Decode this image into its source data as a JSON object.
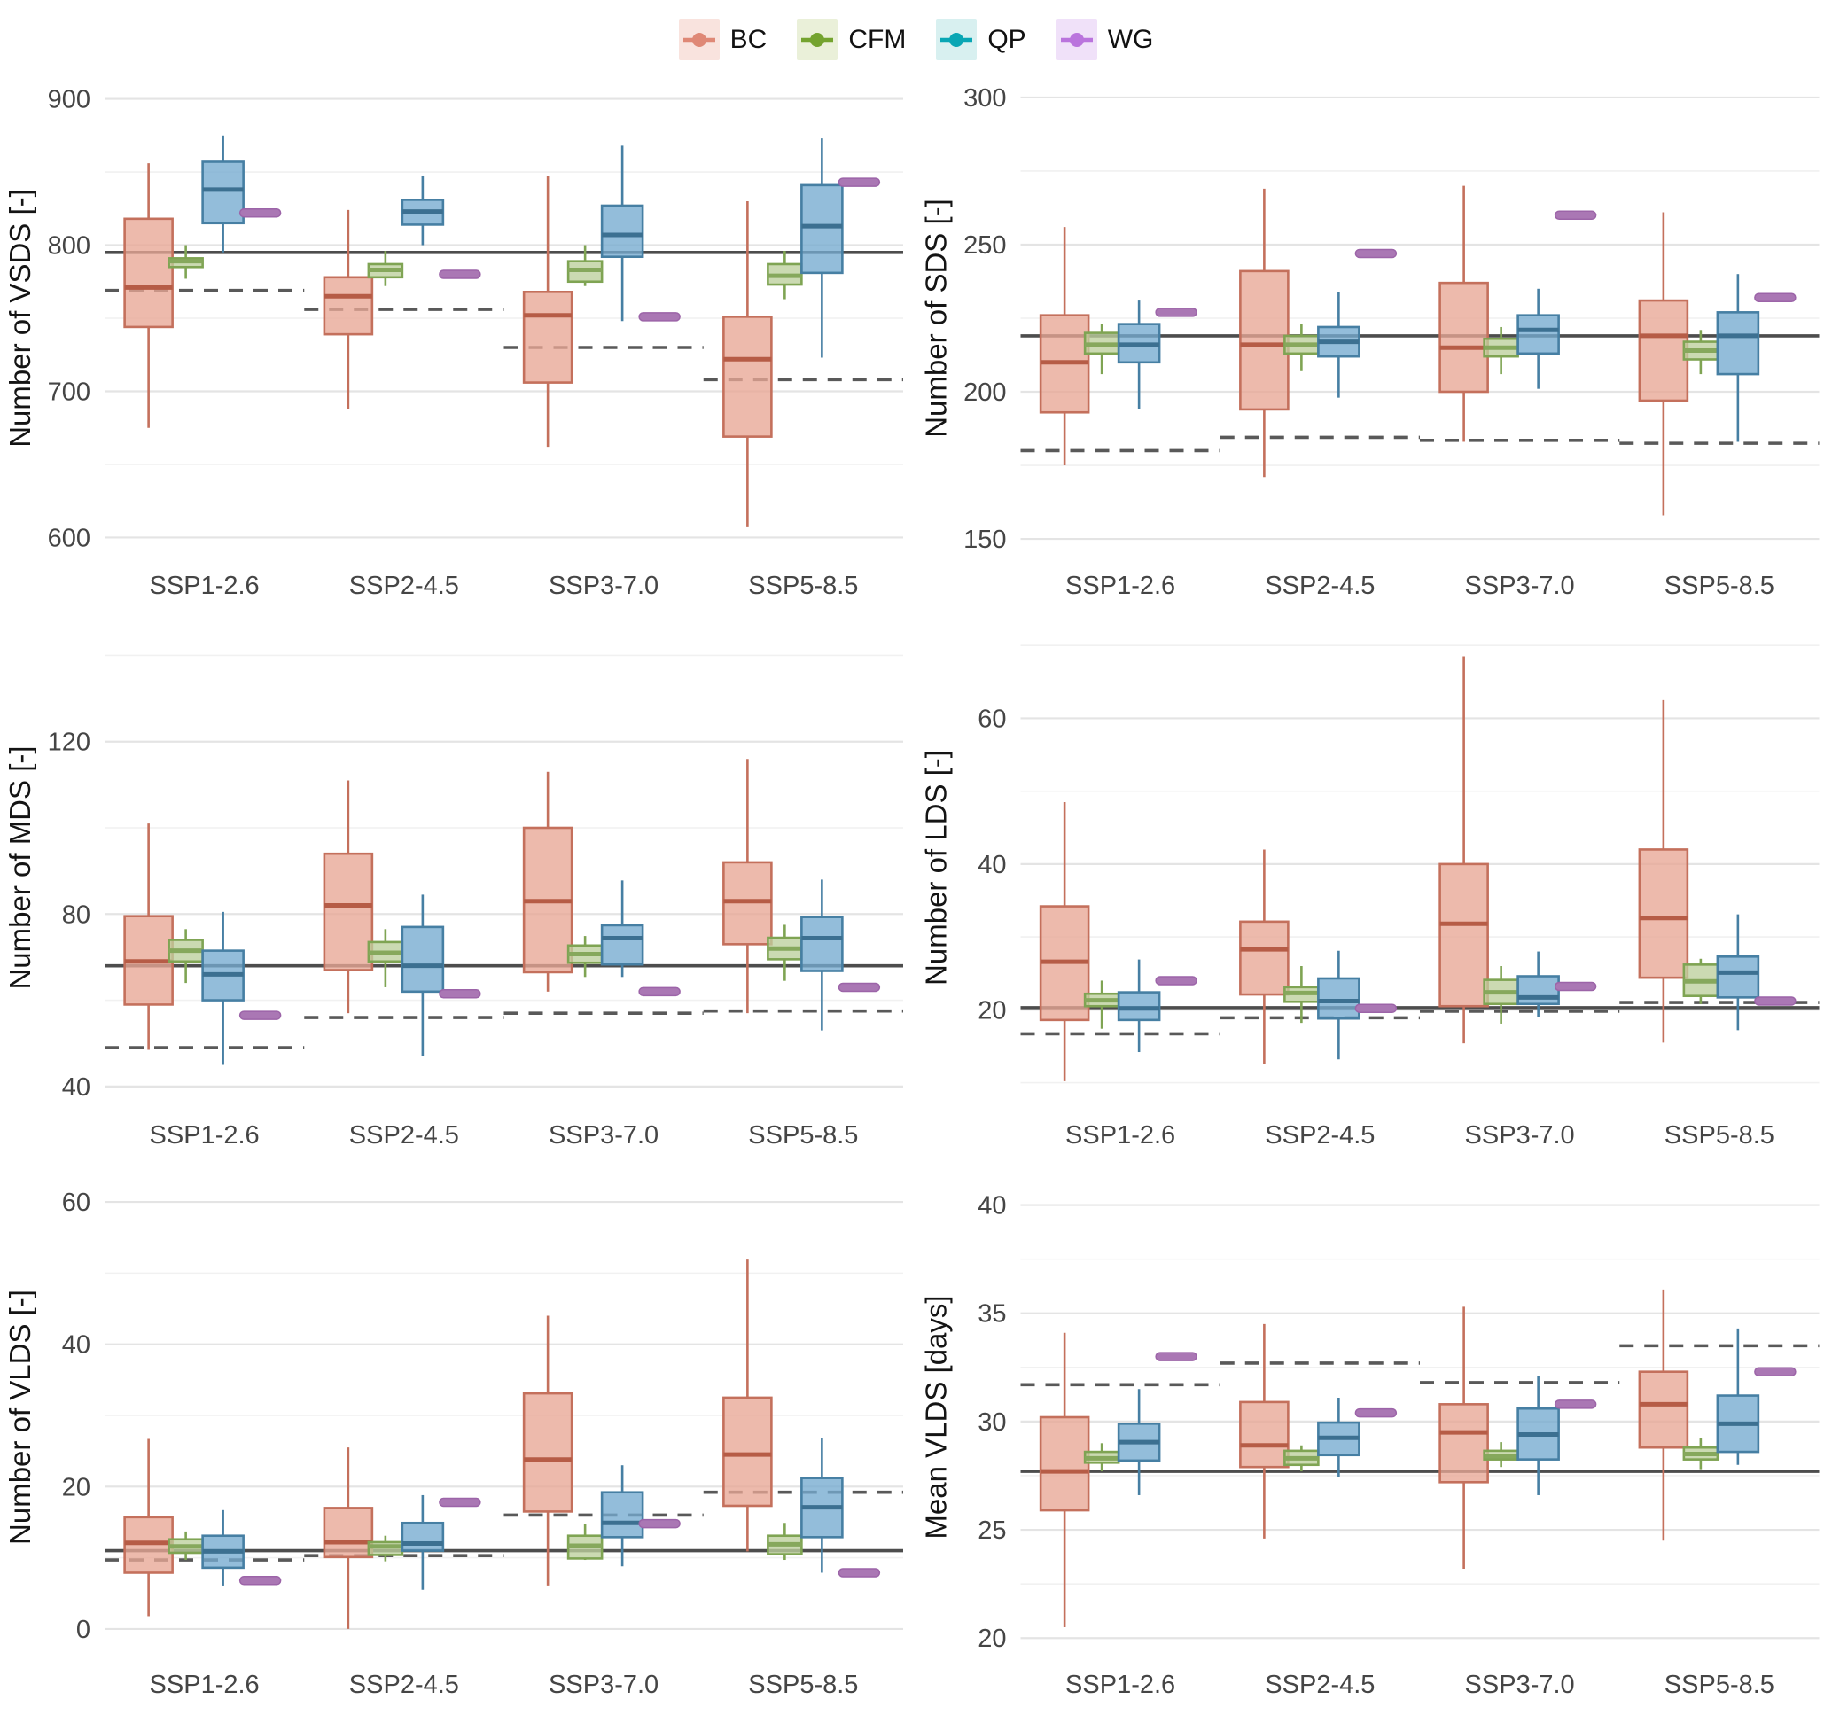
{
  "legend": {
    "items": [
      {
        "id": "bc",
        "label": "BC",
        "glyph": "#df8876",
        "key_bg": "#f9e3de"
      },
      {
        "id": "cfm",
        "label": "CFM",
        "glyph": "#74a32f",
        "key_bg": "#eaf0d9"
      },
      {
        "id": "qp",
        "label": "QP",
        "glyph": "#09a6b4",
        "key_bg": "#d8f0f0"
      },
      {
        "id": "wg",
        "label": "WG",
        "glyph": "#ba74dd",
        "key_bg": "#f0e1f9"
      }
    ]
  },
  "colors": {
    "series": {
      "BC": {
        "stroke": "#c4705c",
        "fill": "#e8a795",
        "median": "#b65c46"
      },
      "CFM": {
        "stroke": "#7fa453",
        "fill": "#bdd09c",
        "median": "#86a85c"
      },
      "QP": {
        "stroke": "#467fa3",
        "fill": "#74aacf",
        "median": "#3c7091"
      }
    },
    "wg_mark": {
      "fill": "#aa77b4",
      "stroke": "#9c64a8"
    },
    "ref_solid": "#4d4d4d",
    "ref_dashed": "#595959",
    "grid_major": "#e4e4e4",
    "grid_minor": "#f1f1f1",
    "tick_text": "#454545",
    "axis_title": "#141414"
  },
  "chart_data": [
    {
      "id": "vsds",
      "type": "grouped-boxplot",
      "ylabel": "Number of VSDS [-]",
      "ylim": [
        593,
        907
      ],
      "yticks": [
        600,
        700,
        800,
        900
      ],
      "yminor": [
        650,
        750,
        850
      ],
      "categories": [
        "SSP1-2.6",
        "SSP2-4.5",
        "SSP3-7.0",
        "SSP5-8.5"
      ],
      "solid_ref": 795,
      "dashed_ref": [
        769,
        756,
        730,
        708
      ],
      "wg": [
        822,
        780,
        751,
        843
      ],
      "series": {
        "BC": [
          [
            675,
            744,
            771,
            818,
            856
          ],
          [
            688,
            739,
            765,
            778,
            824
          ],
          [
            662,
            706,
            752,
            768,
            847
          ],
          [
            607,
            669,
            722,
            751,
            830
          ]
        ],
        "CFM": [
          [
            777,
            785,
            789,
            791,
            800
          ],
          [
            772,
            778,
            783,
            787,
            796
          ],
          [
            772,
            775,
            783,
            789,
            800
          ],
          [
            763,
            773,
            779,
            787,
            796
          ]
        ],
        "QP": [
          [
            795,
            815,
            838,
            857,
            875
          ],
          [
            800,
            814,
            823,
            831,
            847
          ],
          [
            748,
            792,
            807,
            827,
            868
          ],
          [
            723,
            781,
            813,
            841,
            873
          ]
        ]
      }
    },
    {
      "id": "sds",
      "type": "grouped-boxplot",
      "ylabel": "Number of SDS [-]",
      "ylim": [
        147,
        303
      ],
      "yticks": [
        150,
        200,
        250,
        300
      ],
      "yminor": [
        175,
        225,
        275
      ],
      "categories": [
        "SSP1-2.6",
        "SSP2-4.5",
        "SSP3-7.0",
        "SSP5-8.5"
      ],
      "solid_ref": 219,
      "dashed_ref": [
        180,
        184.5,
        183.5,
        182.5
      ],
      "wg": [
        227,
        247,
        260,
        232
      ],
      "series": {
        "BC": [
          [
            175,
            193,
            210,
            226,
            256
          ],
          [
            171,
            194,
            216,
            241,
            269
          ],
          [
            183,
            200,
            215,
            237,
            270
          ],
          [
            158,
            197,
            219,
            231,
            261
          ]
        ],
        "CFM": [
          [
            206,
            213,
            216,
            220,
            223
          ],
          [
            207,
            213,
            216,
            219,
            223
          ],
          [
            206,
            212,
            215,
            218,
            222
          ],
          [
            206,
            211,
            214,
            217,
            221
          ]
        ],
        "QP": [
          [
            194,
            210,
            216,
            223,
            231
          ],
          [
            198,
            212,
            217,
            222,
            234
          ],
          [
            201,
            213,
            221,
            226,
            235
          ],
          [
            183,
            206,
            219,
            227,
            240
          ]
        ]
      }
    },
    {
      "id": "mds",
      "type": "grouped-boxplot",
      "ylabel": "Number of MDS [-]",
      "ylim": [
        37.5,
        144
      ],
      "yticks": [
        40,
        80,
        120
      ],
      "yminor": [
        60,
        100,
        140
      ],
      "categories": [
        "SSP1-2.6",
        "SSP2-4.5",
        "SSP3-7.0",
        "SSP5-8.5"
      ],
      "solid_ref": 68,
      "dashed_ref": [
        49,
        56,
        57,
        57.5
      ],
      "wg": [
        56.5,
        61.5,
        62,
        63
      ],
      "series": {
        "BC": [
          [
            48.5,
            59,
            69,
            79.5,
            101
          ],
          [
            57,
            67,
            82,
            94,
            111
          ],
          [
            62,
            66.5,
            83,
            100,
            113
          ],
          [
            57,
            73,
            83,
            92,
            116
          ]
        ],
        "CFM": [
          [
            64,
            69,
            71.5,
            74,
            76.5
          ],
          [
            63,
            69,
            71,
            73.5,
            76.5
          ],
          [
            65.4,
            68.7,
            70.7,
            72.7,
            74.9
          ],
          [
            64.5,
            69.5,
            72,
            74.5,
            77.5
          ]
        ],
        "QP": [
          [
            45,
            60,
            66,
            71.5,
            80.5
          ],
          [
            47,
            62,
            68,
            77,
            84.5
          ],
          [
            65.4,
            68.3,
            74.4,
            77.4,
            87.8
          ],
          [
            53,
            66.8,
            74.4,
            79.3,
            88
          ]
        ]
      }
    },
    {
      "id": "lds",
      "type": "grouped-boxplot",
      "ylabel": "Number of LDS [-]",
      "ylim": [
        8,
        71
      ],
      "yticks": [
        20,
        40,
        60
      ],
      "yminor": [
        10,
        30,
        50,
        70
      ],
      "categories": [
        "SSP1-2.6",
        "SSP2-4.5",
        "SSP3-7.0",
        "SSP5-8.5"
      ],
      "solid_ref": 20.3,
      "dashed_ref": [
        16.7,
        18.9,
        19.8,
        21
      ],
      "wg": [
        24,
        20.2,
        23.2,
        21.2
      ],
      "series": {
        "BC": [
          [
            10.2,
            18.6,
            26.6,
            34.2,
            48.5
          ],
          [
            12.6,
            22.1,
            28.3,
            32.1,
            42
          ],
          [
            15.4,
            20.5,
            31.8,
            40,
            68.5
          ],
          [
            15.5,
            24.4,
            32.6,
            42,
            62.5
          ]
        ],
        "CFM": [
          [
            17.4,
            20.5,
            21.3,
            22.2,
            24
          ],
          [
            18.2,
            21.1,
            22.3,
            23.1,
            26
          ],
          [
            18.1,
            20.8,
            22.4,
            24.1,
            26
          ],
          [
            20.8,
            21.9,
            23.9,
            26.2,
            27
          ]
        ],
        "QP": [
          [
            14.2,
            18.6,
            20.2,
            22.4,
            26.9
          ],
          [
            13.2,
            18.8,
            21.2,
            24.3,
            28.1
          ],
          [
            19,
            20.8,
            21.7,
            24.6,
            28
          ],
          [
            17.2,
            21.7,
            25.1,
            27.3,
            33.1
          ]
        ]
      }
    },
    {
      "id": "vlds",
      "type": "grouped-boxplot",
      "ylabel": "Number of VLDS [-]",
      "ylim": [
        -2.5,
        62
      ],
      "yticks": [
        0,
        20,
        40,
        60
      ],
      "yminor": [
        10,
        30,
        50
      ],
      "categories": [
        "SSP1-2.6",
        "SSP2-4.5",
        "SSP3-7.0",
        "SSP5-8.5"
      ],
      "solid_ref": 11,
      "dashed_ref": [
        9.7,
        10.3,
        16,
        19.2
      ],
      "wg": [
        6.8,
        17.8,
        14.8,
        7.9
      ],
      "series": {
        "BC": [
          [
            1.8,
            7.9,
            12.1,
            15.7,
            26.7
          ],
          [
            0,
            10.1,
            12.2,
            17,
            25.5
          ],
          [
            6.1,
            16.5,
            23.8,
            33.1,
            44
          ],
          [
            10.9,
            17.3,
            24.5,
            32.5,
            51.9
          ]
        ],
        "CFM": [
          [
            9.7,
            10.7,
            11.6,
            12.6,
            13.7
          ],
          [
            9.5,
            10.4,
            11.6,
            12.2,
            13.1
          ],
          [
            9.7,
            9.9,
            11.7,
            13.1,
            14.8
          ],
          [
            9.7,
            10.5,
            11.9,
            13.1,
            14.9
          ]
        ],
        "QP": [
          [
            6.1,
            8.6,
            10.9,
            13.1,
            16.7
          ],
          [
            5.5,
            11,
            12,
            14.9,
            18.8
          ],
          [
            8.8,
            12.9,
            14.9,
            19.2,
            23
          ],
          [
            7.9,
            12.9,
            17.1,
            21.2,
            26.8
          ]
        ]
      }
    },
    {
      "id": "mean-vlds",
      "type": "grouped-boxplot",
      "ylabel": "Mean VLDS [days]",
      "ylim": [
        19.6,
        40.8
      ],
      "yticks": [
        20,
        25,
        30,
        35,
        40
      ],
      "yminor": [
        22.5,
        27.5,
        32.5,
        37.5
      ],
      "categories": [
        "SSP1-2.6",
        "SSP2-4.5",
        "SSP3-7.0",
        "SSP5-8.5"
      ],
      "solid_ref": 27.7,
      "dashed_ref": [
        31.7,
        32.7,
        31.8,
        33.5
      ],
      "wg": [
        33,
        30.4,
        30.8,
        32.3
      ],
      "series": {
        "BC": [
          [
            20.5,
            25.9,
            27.7,
            30.2,
            34.1
          ],
          [
            24.6,
            27.9,
            28.9,
            30.9,
            34.5
          ],
          [
            23.2,
            27.2,
            29.5,
            30.8,
            35.3
          ],
          [
            24.5,
            28.8,
            30.8,
            32.3,
            36.1
          ]
        ],
        "CFM": [
          [
            27.7,
            28.1,
            28.3,
            28.6,
            29
          ],
          [
            27.7,
            28,
            28.3,
            28.65,
            28.9
          ],
          [
            27.9,
            28.25,
            28.4,
            28.65,
            29.05
          ],
          [
            27.8,
            28.25,
            28.5,
            28.8,
            29.25
          ]
        ],
        "QP": [
          [
            26.6,
            28.2,
            29.05,
            29.9,
            31.5
          ],
          [
            27.45,
            28.45,
            29.25,
            29.95,
            31.1
          ],
          [
            26.6,
            28.25,
            29.4,
            30.6,
            32.1
          ],
          [
            28,
            28.6,
            29.9,
            31.2,
            34.3
          ]
        ]
      }
    }
  ]
}
